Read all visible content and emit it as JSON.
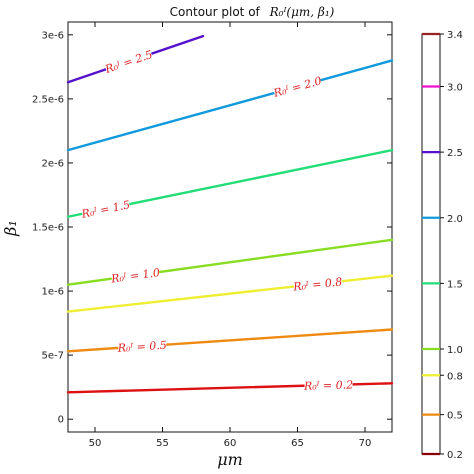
{
  "chart_data": {
    "type": "contour",
    "title_prefix": "Contour plot of",
    "title_math": "R₀ᴵ(μm, β₁)",
    "xlabel": "μm",
    "ylabel": "β₁",
    "xlim": [
      48,
      72
    ],
    "ylim": [
      -1e-07,
      3.1e-06
    ],
    "xticks": [
      {
        "value": 50,
        "label": "50"
      },
      {
        "value": 55,
        "label": "55"
      },
      {
        "value": 60,
        "label": "60"
      },
      {
        "value": 65,
        "label": "65"
      },
      {
        "value": 70,
        "label": "70"
      }
    ],
    "yticks": [
      {
        "value": 0,
        "label": "0"
      },
      {
        "value": 5e-07,
        "label": "5e-7"
      },
      {
        "value": 1e-06,
        "label": "1e-6"
      },
      {
        "value": 1.5e-06,
        "label": "1.5e-6"
      },
      {
        "value": 2e-06,
        "label": "2e-6"
      },
      {
        "value": 2.5e-06,
        "label": "2.5e-6"
      },
      {
        "value": 3e-06,
        "label": "3e-6"
      }
    ],
    "contours": [
      {
        "level": 0.2,
        "label": "R₀ᴵ = 0.2",
        "color": "#dd1111",
        "x": [
          48,
          72
        ],
        "y": [
          2.1e-07,
          2.8e-07
        ],
        "label_at": 67.3
      },
      {
        "level": 0.5,
        "label": "R₀ᴵ = 0.5",
        "color": "#ee8a11",
        "x": [
          48,
          72
        ],
        "y": [
          5.3e-07,
          7e-07
        ],
        "label_at": 53.5
      },
      {
        "level": 0.8,
        "label": "R₀ᴵ = 0.8",
        "color": "#eeee33",
        "x": [
          48,
          72
        ],
        "y": [
          8.4e-07,
          1.12e-06
        ],
        "label_at": 66.5
      },
      {
        "level": 1.0,
        "label": "R₀ᴵ = 1.0",
        "color": "#88dd22",
        "x": [
          48,
          72
        ],
        "y": [
          1.05e-06,
          1.4e-06
        ],
        "label_at": 53.0
      },
      {
        "level": 1.5,
        "label": "R₀ᴵ = 1.5",
        "color": "#22dd77",
        "x": [
          48,
          72
        ],
        "y": [
          1.58e-06,
          2.1e-06
        ],
        "label_at": 50.8
      },
      {
        "level": 2.0,
        "label": "R₀ᴵ = 2.0",
        "color": "#1199dd",
        "x": [
          48,
          72
        ],
        "y": [
          2.1e-06,
          2.8e-06
        ],
        "label_at": 65.0
      },
      {
        "level": 2.5,
        "label": "R₀ᴵ = 2.5",
        "color": "#5511cc",
        "x": [
          48,
          58
        ],
        "y": [
          2.63e-06,
          2.99e-06
        ],
        "label_at": 52.5
      }
    ],
    "colorbar": {
      "levels": [
        0.2,
        0.5,
        0.8,
        1.0,
        1.5,
        2.0,
        2.5,
        3.0,
        3.4
      ],
      "labels": [
        "0.2",
        "0.5",
        "0.8",
        "1.0",
        "1.5",
        "2.0",
        "2.5",
        "3.0",
        "3.4"
      ],
      "colors": [
        "#880000",
        "#ee8a11",
        "#eeee33",
        "#88dd22",
        "#22dd77",
        "#1199dd",
        "#5511cc",
        "#ee11cc",
        "#992222"
      ]
    }
  }
}
